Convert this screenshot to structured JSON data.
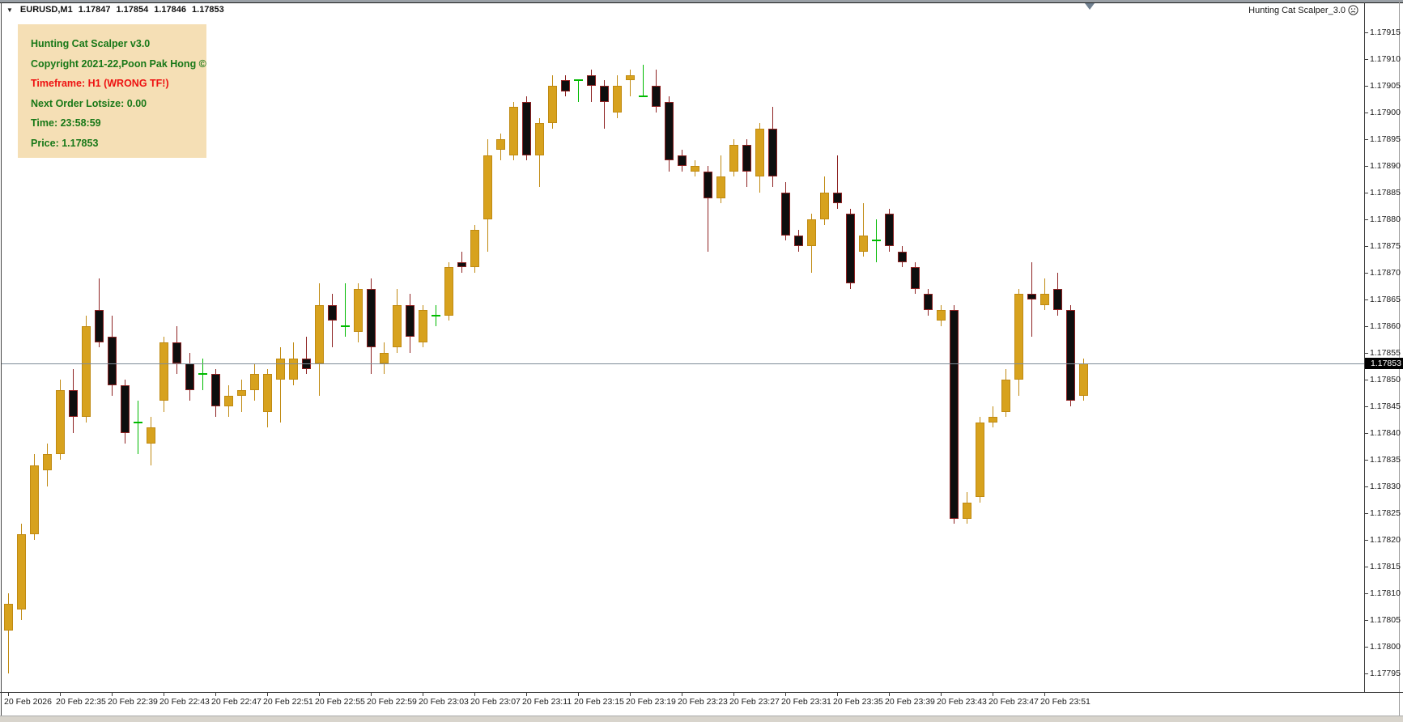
{
  "window": {
    "symbol_bar": {
      "dropdown_icon": "triangle-down",
      "symbol": "EURUSD,M1",
      "open": "1.17847",
      "high": "1.17854",
      "low": "1.17846",
      "close": "1.17853"
    },
    "indicator_label": "Hunting Cat Scalper_3.0",
    "indicator_icon": "sad-smiley"
  },
  "panel": {
    "lines": [
      {
        "text": "Hunting Cat Scalper v3.0",
        "color": "green"
      },
      {
        "text": "Copyright 2021-22,Poon Pak Hong ©",
        "color": "green"
      },
      {
        "text": "Timeframe: H1 (WRONG TF!)",
        "color": "red"
      },
      {
        "text": "Next Order Lotsize: 0.00",
        "color": "green"
      },
      {
        "text": "Time: 23:58:59",
        "color": "green"
      },
      {
        "text": "Price: 1.17853",
        "color": "green"
      }
    ]
  },
  "chart_data": {
    "type": "candlestick",
    "symbol": "EURUSD",
    "timeframe": "M1",
    "grid": "off",
    "legend": "none",
    "y_axis_side": "right",
    "price_axis_labels": [
      "1.17915",
      "1.17910",
      "1.17905",
      "1.17900",
      "1.17895",
      "1.17890",
      "1.17885",
      "1.17880",
      "1.17875",
      "1.17870",
      "1.17865",
      "1.17860",
      "1.17855",
      "1.17850",
      "1.17845",
      "1.17840",
      "1.17835",
      "1.17830",
      "1.17825",
      "1.17820",
      "1.17815",
      "1.17810",
      "1.17805",
      "1.17800",
      "1.17795"
    ],
    "price_axis_range": [
      1.17795,
      1.17915
    ],
    "time_labels": [
      "20 Feb 2026",
      "20 Feb 22:35",
      "20 Feb 22:39",
      "20 Feb 22:43",
      "20 Feb 22:47",
      "20 Feb 22:51",
      "20 Feb 22:55",
      "20 Feb 22:59",
      "20 Feb 23:03",
      "20 Feb 23:07",
      "20 Feb 23:11",
      "20 Feb 23:15",
      "20 Feb 23:19",
      "20 Feb 23:23",
      "20 Feb 23:27",
      "20 Feb 23:31",
      "20 Feb 23:35",
      "20 Feb 23:39",
      "20 Feb 23:43",
      "20 Feb 23:47",
      "20 Feb 23:51"
    ],
    "candles_per_time_label": 4,
    "current_price": "1.17853",
    "current_price_value": 1.17853,
    "candles_ohlc": [
      [
        1.17803,
        1.1781,
        1.17795,
        1.17808
      ],
      [
        1.17807,
        1.17823,
        1.17805,
        1.17821
      ],
      [
        1.17821,
        1.17836,
        1.1782,
        1.17834
      ],
      [
        1.17833,
        1.17838,
        1.1783,
        1.17836
      ],
      [
        1.17836,
        1.1785,
        1.17835,
        1.17848
      ],
      [
        1.17848,
        1.17852,
        1.1784,
        1.17843
      ],
      [
        1.17843,
        1.17862,
        1.17842,
        1.1786
      ],
      [
        1.17863,
        1.17869,
        1.17856,
        1.17857
      ],
      [
        1.17858,
        1.17862,
        1.17847,
        1.17849
      ],
      [
        1.17849,
        1.1785,
        1.17838,
        1.1784
      ],
      [
        1.17842,
        1.17846,
        1.17836,
        1.17842
      ],
      [
        1.17838,
        1.17843,
        1.17834,
        1.17841
      ],
      [
        1.17846,
        1.17858,
        1.17844,
        1.17857
      ],
      [
        1.17857,
        1.1786,
        1.17851,
        1.17853
      ],
      [
        1.17853,
        1.17855,
        1.17846,
        1.17848
      ],
      [
        1.17851,
        1.17854,
        1.17848,
        1.17851
      ],
      [
        1.17851,
        1.17852,
        1.17843,
        1.17845
      ],
      [
        1.17845,
        1.17849,
        1.17843,
        1.17847
      ],
      [
        1.17847,
        1.1785,
        1.17844,
        1.17848
      ],
      [
        1.17848,
        1.17853,
        1.17846,
        1.17851
      ],
      [
        1.17844,
        1.17852,
        1.17841,
        1.17851
      ],
      [
        1.1785,
        1.17856,
        1.17842,
        1.17854
      ],
      [
        1.1785,
        1.17857,
        1.17849,
        1.17854
      ],
      [
        1.17854,
        1.17858,
        1.17851,
        1.17852
      ],
      [
        1.17853,
        1.17868,
        1.17847,
        1.17864
      ],
      [
        1.17864,
        1.17866,
        1.17856,
        1.17861
      ],
      [
        1.1786,
        1.17868,
        1.17858,
        1.1786
      ],
      [
        1.17859,
        1.17868,
        1.17857,
        1.17867
      ],
      [
        1.17867,
        1.17869,
        1.17851,
        1.17856
      ],
      [
        1.17853,
        1.17857,
        1.17851,
        1.17855
      ],
      [
        1.17856,
        1.17867,
        1.17855,
        1.17864
      ],
      [
        1.17864,
        1.17866,
        1.17855,
        1.17858
      ],
      [
        1.17857,
        1.17864,
        1.17856,
        1.17863
      ],
      [
        1.17862,
        1.17864,
        1.1786,
        1.17862
      ],
      [
        1.17862,
        1.17872,
        1.17861,
        1.17871
      ],
      [
        1.17872,
        1.17874,
        1.1787,
        1.17871
      ],
      [
        1.17871,
        1.17879,
        1.1787,
        1.17878
      ],
      [
        1.1788,
        1.17895,
        1.17874,
        1.17892
      ],
      [
        1.17893,
        1.17896,
        1.17891,
        1.17895
      ],
      [
        1.17892,
        1.17902,
        1.17891,
        1.17901
      ],
      [
        1.17902,
        1.17903,
        1.17891,
        1.17892
      ],
      [
        1.17892,
        1.17899,
        1.17886,
        1.17898
      ],
      [
        1.17898,
        1.17907,
        1.17897,
        1.17905
      ],
      [
        1.17906,
        1.17907,
        1.17903,
        1.17904
      ],
      [
        1.17906,
        1.17906,
        1.17902,
        1.17906
      ],
      [
        1.17907,
        1.17908,
        1.17902,
        1.17905
      ],
      [
        1.17905,
        1.17906,
        1.17897,
        1.17902
      ],
      [
        1.179,
        1.17907,
        1.17899,
        1.17905
      ],
      [
        1.17906,
        1.17908,
        1.17903,
        1.17907
      ],
      [
        1.17903,
        1.17909,
        1.17903,
        1.17903
      ],
      [
        1.17905,
        1.17908,
        1.179,
        1.17901
      ],
      [
        1.17902,
        1.17903,
        1.17889,
        1.17891
      ],
      [
        1.17892,
        1.17893,
        1.17889,
        1.1789
      ],
      [
        1.17889,
        1.17891,
        1.17888,
        1.1789
      ],
      [
        1.17889,
        1.1789,
        1.17874,
        1.17884
      ],
      [
        1.17884,
        1.17892,
        1.17883,
        1.17888
      ],
      [
        1.17889,
        1.17895,
        1.17888,
        1.17894
      ],
      [
        1.17894,
        1.17895,
        1.17886,
        1.17889
      ],
      [
        1.17888,
        1.17898,
        1.17885,
        1.17897
      ],
      [
        1.17897,
        1.17901,
        1.17886,
        1.17888
      ],
      [
        1.17885,
        1.17887,
        1.17876,
        1.17877
      ],
      [
        1.17877,
        1.17878,
        1.17874,
        1.17875
      ],
      [
        1.17875,
        1.17881,
        1.1787,
        1.1788
      ],
      [
        1.1788,
        1.17888,
        1.17879,
        1.17885
      ],
      [
        1.17885,
        1.17892,
        1.17882,
        1.17883
      ],
      [
        1.17881,
        1.17882,
        1.17867,
        1.17868
      ],
      [
        1.17874,
        1.17883,
        1.17873,
        1.17877
      ],
      [
        1.17876,
        1.1788,
        1.17872,
        1.17876
      ],
      [
        1.17881,
        1.17882,
        1.17874,
        1.17875
      ],
      [
        1.17874,
        1.17875,
        1.17871,
        1.17872
      ],
      [
        1.17871,
        1.17872,
        1.17866,
        1.17867
      ],
      [
        1.17866,
        1.17867,
        1.17862,
        1.17863
      ],
      [
        1.17861,
        1.17864,
        1.1786,
        1.17863
      ],
      [
        1.17863,
        1.17864,
        1.17823,
        1.17824
      ],
      [
        1.17824,
        1.17829,
        1.17823,
        1.17827
      ],
      [
        1.17828,
        1.17843,
        1.17827,
        1.17842
      ],
      [
        1.17842,
        1.17845,
        1.17841,
        1.17843
      ],
      [
        1.17844,
        1.17852,
        1.17843,
        1.1785
      ],
      [
        1.1785,
        1.17867,
        1.17847,
        1.17866
      ],
      [
        1.17866,
        1.17872,
        1.17858,
        1.17865
      ],
      [
        1.17864,
        1.17869,
        1.17863,
        1.17866
      ],
      [
        1.17867,
        1.1787,
        1.17862,
        1.17863
      ],
      [
        1.17863,
        1.17864,
        1.17845,
        1.17846
      ],
      [
        1.17847,
        1.17854,
        1.17846,
        1.17853
      ]
    ]
  },
  "colors": {
    "bull_fill": "#D7A21E",
    "bull_border": "#C08A12",
    "bear_fill": "#0E0E0E",
    "bear_border": "#8E2222",
    "doji": "#00BA00",
    "price_line": "#7E8C98",
    "panel_bg": "#F5DFB5",
    "panel_green": "#187818",
    "panel_red": "#EE1111",
    "tag_bg": "#000000",
    "tag_text": "#FFFFFF"
  }
}
